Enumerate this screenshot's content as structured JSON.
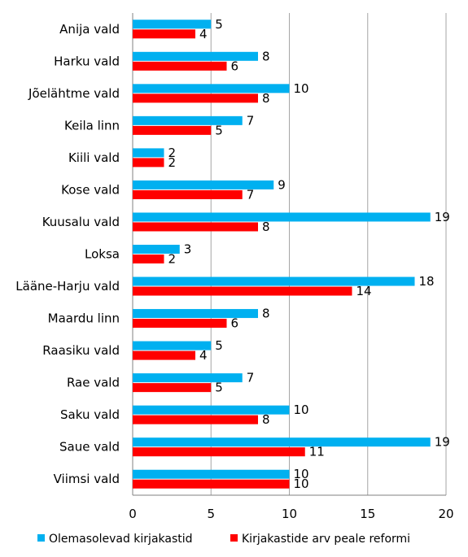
{
  "chart_data": {
    "type": "bar",
    "orientation": "horizontal",
    "categories": [
      "Anija vald",
      "Harku vald",
      "Jõelähtme vald",
      "Keila linn",
      "Kiili vald",
      "Kose vald",
      "Kuusalu vald",
      "Loksa",
      "Lääne-Harju vald",
      "Maardu linn",
      "Raasiku vald",
      "Rae vald",
      "Saku vald",
      "Saue vald",
      "Viimsi vald"
    ],
    "series": [
      {
        "name": "Olemasolevad kirjakastid",
        "color": "#00B0F0",
        "values": [
          5,
          8,
          10,
          7,
          2,
          9,
          19,
          3,
          18,
          8,
          5,
          7,
          10,
          19,
          10
        ]
      },
      {
        "name": "Kirjakastide arv peale reformi",
        "color": "#FF0000",
        "values": [
          4,
          6,
          8,
          5,
          2,
          7,
          8,
          2,
          14,
          6,
          4,
          5,
          8,
          11,
          10
        ]
      }
    ],
    "xlim": [
      0,
      20
    ],
    "xticks": [
      0,
      5,
      10,
      15,
      20
    ],
    "grid": "vertical",
    "legend": "bottom",
    "data_labels": true,
    "gridline_color": "#A6A6A6"
  }
}
